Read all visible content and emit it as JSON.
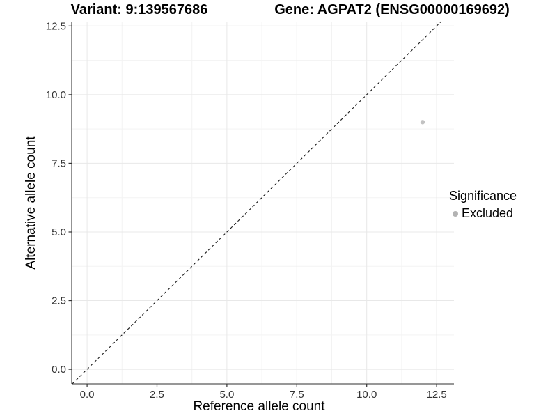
{
  "titles": {
    "variant": "Variant: 9:139567686",
    "gene": "Gene: AGPAT2 (ENSG00000169692)"
  },
  "legend": {
    "title": "Significance",
    "items": [
      {
        "label": "Excluded",
        "color": "#b3b3b3",
        "shape": "circle"
      }
    ]
  },
  "chart_data": {
    "type": "scatter",
    "title_variant": "Variant: 9:139567686",
    "title_gene": "Gene: AGPAT2 (ENSG00000169692)",
    "xlabel": "Reference allele count",
    "ylabel": "Alternative allele count",
    "xlim": [
      -0.55,
      13.12
    ],
    "ylim": [
      -0.53,
      12.66
    ],
    "x_ticks": [
      0,
      2.5,
      5,
      7.5,
      10,
      12.5
    ],
    "x_tick_labels": [
      "0.0",
      "2.5",
      "5.0",
      "7.5",
      "10.0",
      "12.5"
    ],
    "y_ticks": [
      0,
      2.5,
      5,
      7.5,
      10,
      12.5
    ],
    "y_tick_labels": [
      "0.0",
      "2.5",
      "5.0",
      "7.5",
      "10.0",
      "12.5"
    ],
    "x_minor_ticks": [
      1.25,
      3.75,
      6.25,
      8.75,
      11.25
    ],
    "y_minor_ticks": [
      1.25,
      3.75,
      6.25,
      8.75,
      11.25
    ],
    "grid": "major+minor",
    "legend_position": "right",
    "series": [
      {
        "name": "Excluded",
        "color": "#c2c2c2",
        "points": [
          {
            "x": 12,
            "y": 9
          }
        ]
      }
    ],
    "reference_line": {
      "kind": "identity",
      "linetype": "dashed",
      "color": "#1a1a1a"
    }
  },
  "colors": {
    "background": "#ffffff",
    "axis_line": "#595959",
    "tick_mark": "#333333",
    "tick_label": "#333333",
    "grid_major": "#e8e8e8",
    "grid_minor": "#f3f3f3",
    "point": "#c2c2c2"
  }
}
